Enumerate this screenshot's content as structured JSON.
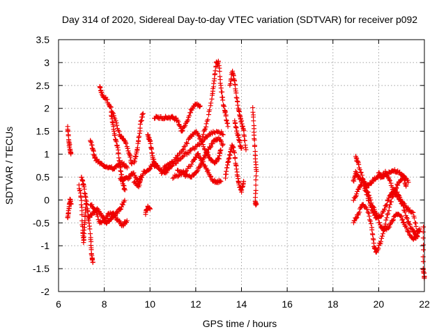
{
  "chart_data": {
    "type": "scatter",
    "title": "Day 314 of 2020, Sidereal Day-to-day VTEC variation (SDTVAR) for receiver p092",
    "xlabel": "GPS time / hours",
    "ylabel": "SDTVAR / TECUs",
    "xlim": [
      6,
      22
    ],
    "ylim": [
      -2,
      3.5
    ],
    "xticks": [
      "6",
      "8",
      "10",
      "12",
      "14",
      "16",
      "18",
      "20",
      "22"
    ],
    "yticks": [
      "3.5",
      "3",
      "2.5",
      "2",
      "1.5",
      "1",
      "0.5",
      "0",
      "-0.5",
      "-1",
      "-1.5",
      "-2"
    ],
    "grid": true,
    "marker": "plus",
    "series": [
      {
        "name": "SDTVAR",
        "color": "#ee0000",
        "tracks": [
          [
            [
              6.4,
              1.6
            ],
            [
              6.45,
              1.3
            ],
            [
              6.5,
              1.1
            ],
            [
              6.55,
              1.0
            ]
          ],
          [
            [
              6.4,
              -0.4
            ],
            [
              6.45,
              -0.2
            ],
            [
              6.5,
              0.0
            ],
            [
              6.55,
              -0.1
            ]
          ],
          [
            [
              6.9,
              0.3
            ],
            [
              7.0,
              0.0
            ],
            [
              7.05,
              -0.6
            ],
            [
              7.1,
              -0.9
            ],
            [
              7.15,
              -0.5
            ],
            [
              7.2,
              -0.1
            ]
          ],
          [
            [
              7.0,
              0.5
            ],
            [
              7.1,
              0.3
            ],
            [
              7.2,
              0.0
            ],
            [
              7.3,
              -0.3
            ],
            [
              7.4,
              -0.8
            ],
            [
              7.45,
              -1.2
            ],
            [
              7.5,
              -1.35
            ]
          ],
          [
            [
              7.3,
              -0.4
            ],
            [
              7.5,
              -0.3
            ],
            [
              7.7,
              -0.2
            ],
            [
              7.9,
              -0.35
            ],
            [
              8.1,
              -0.5
            ],
            [
              8.3,
              -0.4
            ],
            [
              8.5,
              -0.3
            ],
            [
              8.7,
              -0.2
            ],
            [
              8.9,
              0.0
            ]
          ],
          [
            [
              7.4,
              -0.1
            ],
            [
              7.6,
              -0.2
            ],
            [
              7.8,
              -0.5
            ],
            [
              8.0,
              -0.45
            ],
            [
              8.2,
              -0.3
            ],
            [
              8.4,
              -0.3
            ],
            [
              8.6,
              -0.45
            ],
            [
              8.8,
              -0.55
            ],
            [
              9.0,
              -0.45
            ]
          ],
          [
            [
              7.4,
              1.3
            ],
            [
              7.5,
              1.1
            ],
            [
              7.6,
              0.9
            ],
            [
              7.8,
              0.8
            ],
            [
              8.0,
              0.75
            ],
            [
              8.2,
              0.72
            ],
            [
              8.4,
              0.68
            ],
            [
              8.6,
              0.75
            ],
            [
              8.8,
              0.8
            ],
            [
              9.0,
              0.7
            ]
          ],
          [
            [
              7.8,
              2.5
            ],
            [
              7.9,
              2.3
            ],
            [
              8.1,
              2.2
            ],
            [
              8.3,
              2.0
            ],
            [
              8.5,
              1.7
            ],
            [
              8.7,
              1.4
            ],
            [
              8.9,
              1.3
            ],
            [
              9.1,
              1.0
            ],
            [
              9.2,
              0.8
            ]
          ],
          [
            [
              8.3,
              1.9
            ],
            [
              8.4,
              1.6
            ],
            [
              8.5,
              1.3
            ],
            [
              8.6,
              1.1
            ],
            [
              8.7,
              0.7
            ],
            [
              8.8,
              0.4
            ],
            [
              8.9,
              0.2
            ]
          ],
          [
            [
              8.7,
              0.45
            ],
            [
              8.9,
              0.45
            ],
            [
              9.1,
              0.5
            ],
            [
              9.3,
              0.6
            ],
            [
              9.5,
              0.35
            ],
            [
              9.6,
              0.5
            ]
          ],
          [
            [
              9.3,
              0.8
            ],
            [
              9.4,
              1.0
            ],
            [
              9.5,
              1.3
            ],
            [
              9.6,
              1.7
            ],
            [
              9.7,
              1.9
            ]
          ],
          [
            [
              9.3,
              0.4
            ],
            [
              9.5,
              0.3
            ],
            [
              9.7,
              0.6
            ],
            [
              9.9,
              0.65
            ],
            [
              10.1,
              0.75
            ],
            [
              10.3,
              0.75
            ],
            [
              10.5,
              0.65
            ],
            [
              10.7,
              0.6
            ],
            [
              10.9,
              0.75
            ]
          ],
          [
            [
              9.8,
              -0.3
            ],
            [
              9.9,
              -0.15
            ],
            [
              10.0,
              -0.2
            ]
          ],
          [
            [
              9.9,
              1.4
            ],
            [
              10.0,
              1.3
            ],
            [
              10.1,
              1.0
            ],
            [
              10.2,
              0.8
            ],
            [
              10.3,
              0.75
            ]
          ],
          [
            [
              10.2,
              1.8
            ],
            [
              10.4,
              1.8
            ],
            [
              10.6,
              1.8
            ],
            [
              10.8,
              1.8
            ],
            [
              11.0,
              1.8
            ],
            [
              11.2,
              1.75
            ],
            [
              11.4,
              1.5
            ],
            [
              11.6,
              1.7
            ],
            [
              11.8,
              1.95
            ],
            [
              12.0,
              2.1
            ],
            [
              12.2,
              2.05
            ]
          ],
          [
            [
              10.5,
              0.6
            ],
            [
              10.8,
              0.7
            ],
            [
              11.1,
              0.8
            ],
            [
              11.4,
              0.95
            ],
            [
              11.7,
              1.05
            ],
            [
              12.0,
              1.15
            ],
            [
              12.3,
              1.3
            ],
            [
              12.6,
              1.45
            ],
            [
              12.9,
              1.5
            ],
            [
              13.2,
              1.45
            ]
          ],
          [
            [
              10.6,
              0.7
            ],
            [
              10.9,
              0.8
            ],
            [
              11.2,
              0.95
            ],
            [
              11.5,
              1.15
            ],
            [
              11.8,
              1.4
            ],
            [
              12.0,
              1.5
            ],
            [
              12.2,
              1.35
            ],
            [
              12.4,
              1.1
            ],
            [
              12.6,
              0.9
            ],
            [
              12.8,
              0.8
            ],
            [
              13.0,
              0.9
            ],
            [
              13.1,
              1.1
            ]
          ],
          [
            [
              11.0,
              0.5
            ],
            [
              11.3,
              0.55
            ],
            [
              11.6,
              0.65
            ],
            [
              11.9,
              0.85
            ],
            [
              12.1,
              1.0
            ],
            [
              12.3,
              0.85
            ],
            [
              12.5,
              0.65
            ],
            [
              12.7,
              0.45
            ],
            [
              12.9,
              0.4
            ],
            [
              13.1,
              0.4
            ]
          ],
          [
            [
              11.2,
              0.65
            ],
            [
              11.5,
              0.55
            ],
            [
              11.8,
              0.5
            ],
            [
              12.0,
              0.6
            ],
            [
              12.2,
              0.75
            ],
            [
              12.4,
              0.95
            ],
            [
              12.6,
              1.15
            ],
            [
              12.8,
              1.3
            ],
            [
              13.0,
              1.35
            ],
            [
              13.2,
              1.2
            ]
          ],
          [
            [
              12.3,
              1.4
            ],
            [
              12.5,
              1.7
            ],
            [
              12.7,
              2.2
            ],
            [
              12.8,
              2.6
            ],
            [
              12.9,
              3.0
            ],
            [
              13.0,
              3.0
            ],
            [
              13.1,
              2.5
            ],
            [
              13.2,
              2.1
            ],
            [
              13.3,
              1.9
            ],
            [
              13.4,
              1.6
            ]
          ],
          [
            [
              13.3,
              0.5
            ],
            [
              13.4,
              0.8
            ],
            [
              13.5,
              1.0
            ],
            [
              13.6,
              1.2
            ],
            [
              13.7,
              1.0
            ],
            [
              13.8,
              0.6
            ],
            [
              13.9,
              0.3
            ],
            [
              14.0,
              0.2
            ],
            [
              14.1,
              0.4
            ]
          ],
          [
            [
              13.5,
              2.5
            ],
            [
              13.6,
              2.8
            ],
            [
              13.7,
              2.6
            ],
            [
              13.8,
              2.2
            ],
            [
              13.9,
              1.9
            ],
            [
              14.0,
              1.7
            ],
            [
              14.1,
              1.5
            ],
            [
              14.2,
              1.1
            ]
          ],
          [
            [
              13.7,
              1.7
            ],
            [
              13.8,
              1.5
            ],
            [
              13.9,
              1.3
            ],
            [
              14.0,
              1.1
            ]
          ],
          [
            [
              14.5,
              2.0
            ],
            [
              14.55,
              1.5
            ],
            [
              14.6,
              1.0
            ],
            [
              14.65,
              0.6
            ],
            [
              14.6,
              -0.05
            ],
            [
              14.65,
              -0.1
            ]
          ],
          [
            [
              18.9,
              0.4
            ],
            [
              19.0,
              0.6
            ],
            [
              19.1,
              0.5
            ],
            [
              19.3,
              0.4
            ],
            [
              19.5,
              0.3
            ],
            [
              19.7,
              0.4
            ],
            [
              19.9,
              0.5
            ],
            [
              20.1,
              0.5
            ],
            [
              20.3,
              0.55
            ],
            [
              20.5,
              0.6
            ],
            [
              20.7,
              0.65
            ],
            [
              20.9,
              0.6
            ],
            [
              21.1,
              0.5
            ],
            [
              21.3,
              0.4
            ]
          ],
          [
            [
              18.9,
              0.0
            ],
            [
              19.1,
              0.2
            ],
            [
              19.3,
              0.4
            ],
            [
              19.5,
              0.1
            ],
            [
              19.7,
              -0.2
            ],
            [
              19.9,
              -0.4
            ],
            [
              20.1,
              -0.35
            ],
            [
              20.3,
              -0.15
            ],
            [
              20.5,
              0.1
            ],
            [
              20.7,
              0.2
            ],
            [
              20.9,
              0.1
            ],
            [
              21.1,
              -0.2
            ],
            [
              21.3,
              -0.5
            ],
            [
              21.5,
              -0.7
            ],
            [
              21.7,
              -0.8
            ]
          ],
          [
            [
              18.9,
              -0.5
            ],
            [
              19.1,
              -0.3
            ],
            [
              19.3,
              -0.1
            ],
            [
              19.5,
              -0.2
            ],
            [
              19.7,
              -0.6
            ],
            [
              19.8,
              -1.0
            ],
            [
              19.9,
              -1.15
            ],
            [
              20.1,
              -0.9
            ],
            [
              20.3,
              -0.5
            ],
            [
              20.5,
              -0.1
            ],
            [
              20.7,
              0.2
            ],
            [
              20.9,
              0.4
            ],
            [
              21.1,
              0.5
            ],
            [
              21.2,
              0.3
            ]
          ],
          [
            [
              19.0,
              0.95
            ],
            [
              19.1,
              0.8
            ],
            [
              19.3,
              0.5
            ],
            [
              19.5,
              0.2
            ],
            [
              19.7,
              -0.1
            ],
            [
              19.9,
              -0.3
            ],
            [
              20.1,
              -0.6
            ],
            [
              20.3,
              -0.65
            ],
            [
              20.5,
              -0.55
            ],
            [
              20.7,
              -0.35
            ],
            [
              20.9,
              -0.3
            ],
            [
              21.1,
              -0.5
            ],
            [
              21.3,
              -0.7
            ],
            [
              21.5,
              -0.85
            ],
            [
              21.7,
              -0.8
            ]
          ],
          [
            [
              20.0,
              0.6
            ],
            [
              20.1,
              0.5
            ],
            [
              20.3,
              0.6
            ],
            [
              20.5,
              0.4
            ],
            [
              20.7,
              0.15
            ],
            [
              20.9,
              0.0
            ],
            [
              21.1,
              -0.1
            ],
            [
              21.3,
              -0.2
            ],
            [
              21.5,
              -0.3
            ],
            [
              21.7,
              -0.7
            ],
            [
              21.8,
              -0.65
            ]
          ],
          [
            [
              21.95,
              -0.6
            ],
            [
              21.95,
              -1.5
            ],
            [
              22.0,
              -1.65
            ],
            [
              22.0,
              -1.7
            ]
          ]
        ]
      }
    ]
  }
}
